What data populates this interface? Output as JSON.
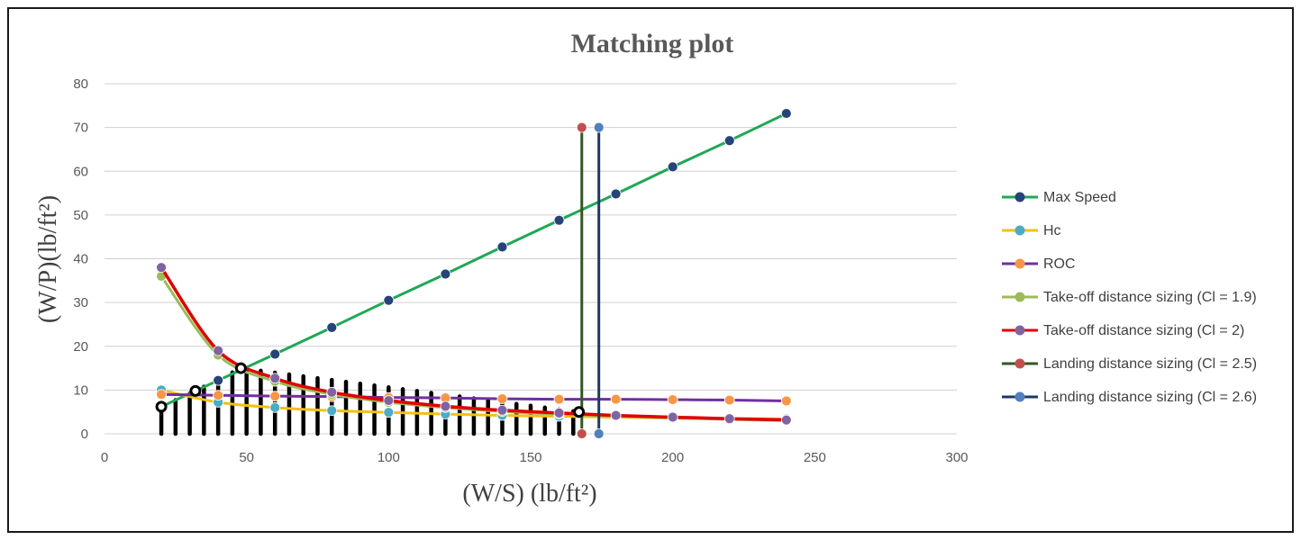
{
  "chart_data": {
    "type": "line",
    "title": "Matching plot",
    "xlabel": "(W/S) (lb/ft²)",
    "ylabel": "(W/P)(lb/ft²)",
    "xlim": [
      0,
      300
    ],
    "ylim": [
      0,
      80
    ],
    "x_ticks": [
      0,
      50,
      100,
      150,
      200,
      250,
      300
    ],
    "y_ticks": [
      0,
      10,
      20,
      30,
      40,
      50,
      60,
      70,
      80
    ],
    "grid": "horizontal",
    "legend_position": "right",
    "series": [
      {
        "name": "Max Speed",
        "line_color": "#1fa855",
        "marker_color": "#264478",
        "x": [
          20,
          40,
          60,
          80,
          100,
          120,
          140,
          160,
          180,
          200,
          220,
          240
        ],
        "y": [
          6.2,
          12.2,
          18.2,
          24.3,
          30.5,
          36.5,
          42.7,
          48.8,
          54.8,
          61.0,
          67.0,
          73.2
        ]
      },
      {
        "name": "Hc",
        "line_color": "#f2c018",
        "marker_color": "#4bacc6",
        "x": [
          20,
          40,
          60,
          80,
          100,
          120,
          140,
          160,
          180,
          200,
          220,
          240
        ],
        "y": [
          10.0,
          7.2,
          6.0,
          5.3,
          4.9,
          4.5,
          4.2,
          4.0,
          3.8,
          3.6,
          3.5,
          3.4
        ]
      },
      {
        "name": "ROC",
        "line_color": "#7030a0",
        "marker_color": "#f79646",
        "x": [
          20,
          40,
          60,
          80,
          100,
          120,
          140,
          160,
          180,
          200,
          220,
          240
        ],
        "y": [
          9.0,
          8.8,
          8.6,
          8.5,
          8.3,
          8.2,
          8.0,
          7.9,
          7.9,
          7.8,
          7.7,
          7.5
        ]
      },
      {
        "name": "Take-off distance sizing (Cl = 1.9)",
        "line_color": "#9bbb59",
        "marker_color": "#9bbb59",
        "x": [
          20,
          40,
          60,
          80,
          100,
          120,
          140,
          160,
          180,
          200,
          220,
          240
        ],
        "y": [
          36.0,
          18.0,
          12.0,
          9.0,
          7.2,
          6.0,
          5.1,
          4.5,
          4.0,
          3.6,
          3.3,
          3.0
        ]
      },
      {
        "name": "Take-off distance sizing (Cl = 2)",
        "line_color": "#e00000",
        "marker_color": "#8064a2",
        "x": [
          20,
          40,
          60,
          80,
          100,
          120,
          140,
          160,
          180,
          200,
          220,
          240
        ],
        "y": [
          38.0,
          19.0,
          12.7,
          9.5,
          7.6,
          6.3,
          5.4,
          4.75,
          4.2,
          3.8,
          3.45,
          3.15
        ]
      },
      {
        "name": "Landing distance sizing (Cl = 2.5)",
        "line_color": "#375623",
        "marker_color": "#c0504d",
        "x": [
          168,
          168
        ],
        "y": [
          0,
          70
        ]
      },
      {
        "name": "Landing distance sizing (Cl = 2.6)",
        "line_color": "#1f3864",
        "marker_color": "#4f81bd",
        "x": [
          174,
          174
        ],
        "y": [
          0,
          70
        ]
      }
    ],
    "feasible_region": {
      "boundary_points": [
        [
          20,
          6.2
        ],
        [
          32,
          9.8
        ],
        [
          48,
          15.0
        ],
        [
          167,
          5.0
        ]
      ],
      "hatch_x": [
        20,
        25,
        30,
        35,
        40,
        45,
        50,
        55,
        60,
        65,
        70,
        75,
        80,
        85,
        90,
        95,
        100,
        105,
        110,
        115,
        120,
        125,
        130,
        135,
        140,
        145,
        150,
        155,
        160,
        165
      ],
      "color": "#000000"
    }
  }
}
